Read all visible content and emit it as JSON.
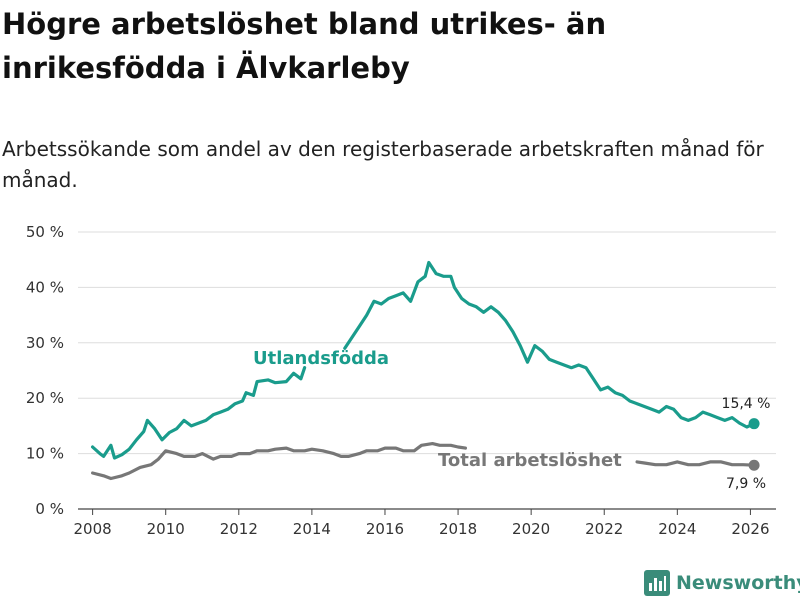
{
  "title": "Högre arbetslöshet bland utrikes- än inrikesfödda i Älvkarleby",
  "subtitle": "Arbetssökande som andel av den registerbaserade arbetskraften månad för månad.",
  "brand": {
    "name": "Newsworthy",
    "icon": "bar-chart-logo-icon",
    "color": "#3a8c7a"
  },
  "chart_data": {
    "type": "line",
    "ylim": [
      0,
      50
    ],
    "yticks": [
      0,
      10,
      20,
      30,
      40,
      50
    ],
    "ytick_labels": [
      "0 %",
      "10 %",
      "20 %",
      "30 %",
      "40 %",
      "50 %"
    ],
    "xlim": [
      2007.6,
      2026.7
    ],
    "xticks": [
      2008,
      2010,
      2012,
      2014,
      2016,
      2018,
      2020,
      2022,
      2024,
      2026
    ],
    "xtick_labels": [
      "2008",
      "2010",
      "2012",
      "2014",
      "2016",
      "2018",
      "2020",
      "2022",
      "2024",
      "2026"
    ],
    "grid": "horizontal",
    "series": [
      {
        "name": "Utlandsfödda",
        "label": "Utlandsfödda",
        "color": "#1a9c8c",
        "end_label": "15,4 %",
        "end_value": 15.4,
        "points": [
          [
            2008.0,
            11.2
          ],
          [
            2008.2,
            10.0
          ],
          [
            2008.3,
            9.5
          ],
          [
            2008.5,
            11.5
          ],
          [
            2008.6,
            9.2
          ],
          [
            2008.8,
            9.8
          ],
          [
            2009.0,
            10.8
          ],
          [
            2009.2,
            12.5
          ],
          [
            2009.4,
            14.0
          ],
          [
            2009.5,
            16.0
          ],
          [
            2009.7,
            14.5
          ],
          [
            2009.9,
            12.5
          ],
          [
            2010.1,
            13.8
          ],
          [
            2010.3,
            14.5
          ],
          [
            2010.5,
            16.0
          ],
          [
            2010.7,
            15.0
          ],
          [
            2010.9,
            15.5
          ],
          [
            2011.1,
            16.0
          ],
          [
            2011.3,
            17.0
          ],
          [
            2011.5,
            17.5
          ],
          [
            2011.7,
            18.0
          ],
          [
            2011.9,
            19.0
          ],
          [
            2012.1,
            19.5
          ],
          [
            2012.2,
            21.0
          ],
          [
            2012.4,
            20.5
          ],
          [
            2012.5,
            23.0
          ],
          [
            2012.8,
            23.3
          ],
          [
            2013.0,
            22.8
          ],
          [
            2013.3,
            23.0
          ],
          [
            2013.5,
            24.5
          ],
          [
            2013.7,
            23.5
          ],
          [
            2013.8,
            25.5
          ],
          [
            null,
            null
          ],
          [
            2014.9,
            29.0
          ],
          [
            2015.1,
            31.0
          ],
          [
            2015.3,
            33.0
          ],
          [
            2015.5,
            35.0
          ],
          [
            2015.7,
            37.5
          ],
          [
            2015.9,
            37.0
          ],
          [
            2016.1,
            38.0
          ],
          [
            2016.3,
            38.5
          ],
          [
            2016.5,
            39.0
          ],
          [
            2016.7,
            37.5
          ],
          [
            2016.9,
            41.0
          ],
          [
            2017.1,
            42.0
          ],
          [
            2017.2,
            44.5
          ],
          [
            2017.4,
            42.5
          ],
          [
            2017.6,
            42.0
          ],
          [
            2017.8,
            42.0
          ],
          [
            2017.9,
            40.0
          ],
          [
            2018.1,
            38.0
          ],
          [
            2018.3,
            37.0
          ],
          [
            2018.5,
            36.5
          ],
          [
            2018.7,
            35.5
          ],
          [
            2018.9,
            36.5
          ],
          [
            2019.1,
            35.5
          ],
          [
            2019.3,
            34.0
          ],
          [
            2019.5,
            32.0
          ],
          [
            2019.7,
            29.5
          ],
          [
            2019.9,
            26.5
          ],
          [
            2020.1,
            29.5
          ],
          [
            2020.3,
            28.5
          ],
          [
            2020.5,
            27.0
          ],
          [
            2020.7,
            26.5
          ],
          [
            2020.9,
            26.0
          ],
          [
            2021.1,
            25.5
          ],
          [
            2021.3,
            26.0
          ],
          [
            2021.5,
            25.5
          ],
          [
            2021.7,
            23.5
          ],
          [
            2021.9,
            21.5
          ],
          [
            2022.1,
            22.0
          ],
          [
            2022.3,
            21.0
          ],
          [
            2022.5,
            20.5
          ],
          [
            2022.7,
            19.5
          ],
          [
            2022.9,
            19.0
          ],
          [
            2023.1,
            18.5
          ],
          [
            2023.3,
            18.0
          ],
          [
            2023.5,
            17.5
          ],
          [
            2023.7,
            18.5
          ],
          [
            2023.9,
            18.0
          ],
          [
            2024.1,
            16.5
          ],
          [
            2024.3,
            16.0
          ],
          [
            2024.5,
            16.5
          ],
          [
            2024.7,
            17.5
          ],
          [
            2024.9,
            17.0
          ],
          [
            2025.1,
            16.5
          ],
          [
            2025.3,
            16.0
          ],
          [
            2025.5,
            16.5
          ],
          [
            2025.7,
            15.5
          ],
          [
            2025.9,
            14.8
          ],
          [
            2026.1,
            15.4
          ]
        ]
      },
      {
        "name": "Total arbetslöshet",
        "label": "Total arbetslöshet",
        "color": "#777777",
        "end_label": "7,9 %",
        "end_value": 7.9,
        "points": [
          [
            2008.0,
            6.5
          ],
          [
            2008.3,
            6.0
          ],
          [
            2008.5,
            5.5
          ],
          [
            2008.8,
            6.0
          ],
          [
            2009.0,
            6.5
          ],
          [
            2009.3,
            7.5
          ],
          [
            2009.6,
            8.0
          ],
          [
            2009.8,
            9.0
          ],
          [
            2010.0,
            10.5
          ],
          [
            2010.3,
            10.0
          ],
          [
            2010.5,
            9.5
          ],
          [
            2010.8,
            9.5
          ],
          [
            2011.0,
            10.0
          ],
          [
            2011.3,
            9.0
          ],
          [
            2011.5,
            9.5
          ],
          [
            2011.8,
            9.5
          ],
          [
            2012.0,
            10.0
          ],
          [
            2012.3,
            10.0
          ],
          [
            2012.5,
            10.5
          ],
          [
            2012.8,
            10.5
          ],
          [
            2013.0,
            10.8
          ],
          [
            2013.3,
            11.0
          ],
          [
            2013.5,
            10.5
          ],
          [
            2013.8,
            10.5
          ],
          [
            2014.0,
            10.8
          ],
          [
            2014.3,
            10.5
          ],
          [
            2014.6,
            10.0
          ],
          [
            2014.8,
            9.5
          ],
          [
            2015.0,
            9.5
          ],
          [
            2015.3,
            10.0
          ],
          [
            2015.5,
            10.5
          ],
          [
            2015.8,
            10.5
          ],
          [
            2016.0,
            11.0
          ],
          [
            2016.3,
            11.0
          ],
          [
            2016.5,
            10.5
          ],
          [
            2016.8,
            10.5
          ],
          [
            2017.0,
            11.5
          ],
          [
            2017.3,
            11.8
          ],
          [
            2017.5,
            11.5
          ],
          [
            2017.8,
            11.5
          ],
          [
            2018.0,
            11.2
          ],
          [
            2018.2,
            11.0
          ],
          [
            null,
            null
          ],
          [
            2022.9,
            8.5
          ],
          [
            2023.1,
            8.3
          ],
          [
            2023.4,
            8.0
          ],
          [
            2023.7,
            8.0
          ],
          [
            2024.0,
            8.5
          ],
          [
            2024.3,
            8.0
          ],
          [
            2024.6,
            8.0
          ],
          [
            2024.9,
            8.5
          ],
          [
            2025.2,
            8.5
          ],
          [
            2025.5,
            8.0
          ],
          [
            2025.8,
            8.0
          ],
          [
            2026.1,
            7.9
          ]
        ]
      }
    ]
  }
}
